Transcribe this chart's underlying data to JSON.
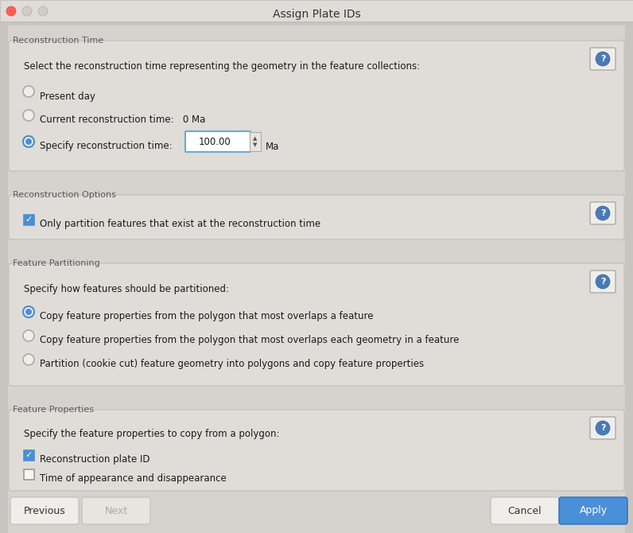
{
  "title": "Assign Plate IDs",
  "bg_outer": "#c8c5c0",
  "bg_inner": "#d6d3ce",
  "panel_bg": "#e0ddd8",
  "title_bar_bg": "#e8e5e0",
  "section_label_color": "#5a5a5a",
  "body_text_color": "#1a1a1a",
  "help_btn_outer": "#e8e5e0",
  "help_btn_border": "#aaaaaa",
  "help_icon_bg": "#4a7ab5",
  "checkbox_color": "#4a8fd4",
  "radio_color": "#4a8fd4",
  "apply_bg": "#4a90d9",
  "apply_border": "#2a70b9",
  "sections": [
    {
      "label": "Reconstruction Time",
      "header": "Select the reconstruction time representing the geometry in the feature collections:",
      "items": [
        {
          "type": "radio",
          "checked": false,
          "text": "Present day"
        },
        {
          "type": "radio",
          "checked": false,
          "text": "Current reconstruction time:   0 Ma"
        },
        {
          "type": "radio",
          "checked": true,
          "text": "Specify reconstruction time:",
          "has_input": true,
          "input_value": "100.00",
          "input_suffix": "Ma"
        }
      ],
      "has_help": true
    },
    {
      "label": "Reconstruction Options",
      "items": [
        {
          "type": "checkbox",
          "checked": true,
          "text": "Only partition features that exist at the reconstruction time"
        }
      ],
      "has_help": true
    },
    {
      "label": "Feature Partitioning",
      "header": "Specify how features should be partitioned:",
      "items": [
        {
          "type": "radio",
          "checked": true,
          "text": "Copy feature properties from the polygon that most overlaps a feature"
        },
        {
          "type": "radio",
          "checked": false,
          "text": "Copy feature properties from the polygon that most overlaps each geometry in a feature"
        },
        {
          "type": "radio",
          "checked": false,
          "text": "Partition (cookie cut) feature geometry into polygons and copy feature properties"
        }
      ],
      "has_help": true
    },
    {
      "label": "Feature Properties",
      "header": "Specify the feature properties to copy from a polygon:",
      "items": [
        {
          "type": "checkbox",
          "checked": true,
          "text": "Reconstruction plate ID"
        },
        {
          "type": "checkbox",
          "checked": false,
          "text": "Time of appearance and disappearance"
        }
      ],
      "has_help": true
    }
  ]
}
